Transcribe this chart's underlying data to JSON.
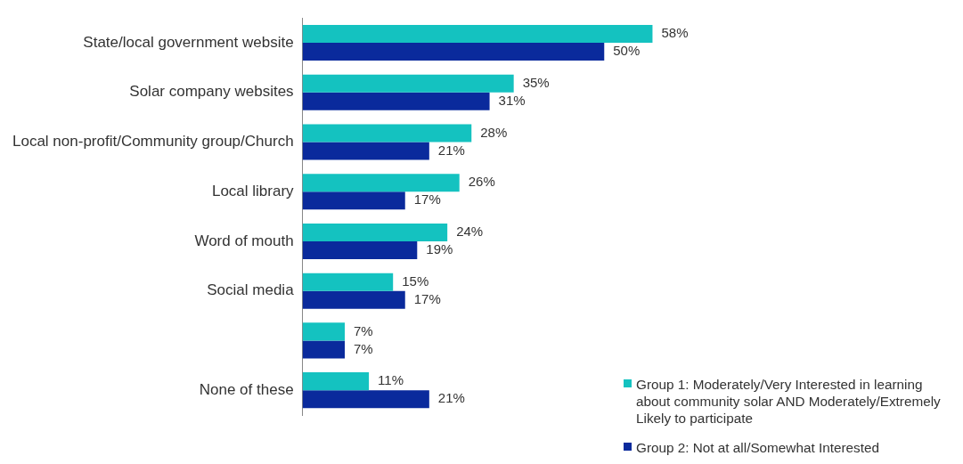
{
  "chart_data": {
    "type": "bar",
    "orientation": "horizontal",
    "categories": [
      "State/local government website",
      "Solar company websites",
      "Local non-profit/Community group/Church",
      "Local library",
      "Word of mouth",
      "Social media",
      null,
      "None of these"
    ],
    "series": [
      {
        "name": "Group 1: Moderately/Very Interested in learning about community solar AND Moderately/Extremely Likely to participate",
        "color": "#14c2c0",
        "values": [
          58,
          35,
          28,
          26,
          24,
          15,
          7,
          11
        ],
        "value_labels": [
          "58%",
          "35%",
          "28%",
          "26%",
          "24%",
          "15%",
          "7%",
          "11%"
        ]
      },
      {
        "name": "Group 2: Not at all/Somewhat Interested",
        "color": "#0a2a9c",
        "values": [
          50,
          31,
          21,
          17,
          19,
          17,
          7,
          21
        ],
        "value_labels": [
          "50%",
          "31%",
          "21%",
          "17%",
          "19%",
          "17%",
          "7%",
          "21%"
        ]
      }
    ],
    "legend": "bottom right"
  }
}
